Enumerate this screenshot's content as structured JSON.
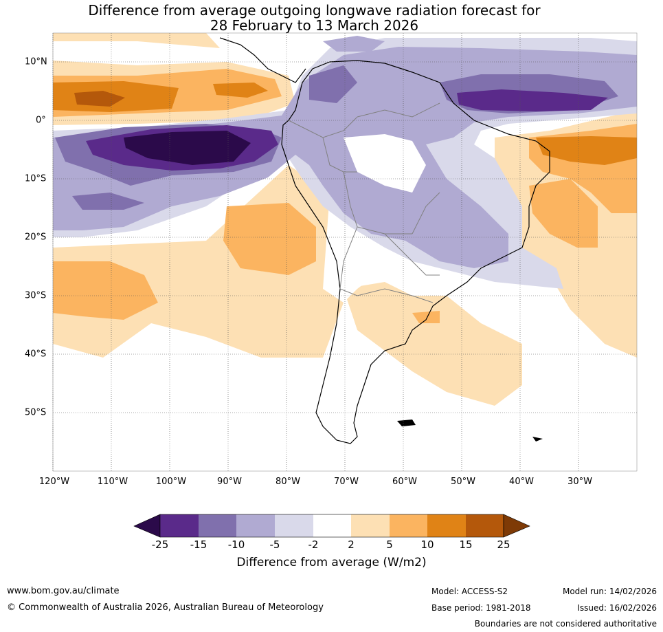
{
  "title": {
    "line1": "Difference from average outgoing longwave radiation forecast for",
    "line2": "28 February to 13 March 2026"
  },
  "map": {
    "lat_labels": [
      "10°N",
      "0°",
      "10°S",
      "20°S",
      "30°S",
      "40°S",
      "50°S"
    ],
    "lon_labels": [
      "120°W",
      "110°W",
      "100°W",
      "90°W",
      "80°W",
      "70°W",
      "60°W",
      "50°W",
      "40°W",
      "30°W"
    ]
  },
  "colorbar": {
    "title": "Difference from average (W/m2)",
    "tick_labels": [
      "-25",
      "-15",
      "-10",
      "-5",
      "-2",
      "2",
      "5",
      "10",
      "15",
      "25"
    ],
    "colors": {
      "below_-25": "#2b0a4a",
      "-25_-15": "#5a2a8a",
      "-15_-10": "#8070ad",
      "-10_-5": "#b0aad2",
      "-5_-2": "#d9d9ea",
      "-2_2": "#ffffff",
      "2_5": "#fde0b4",
      "5_10": "#fbb460",
      "10_15": "#e08316",
      "15_25": "#b4580b",
      "above_25": "#7e3a06"
    }
  },
  "footer": {
    "website": "www.bom.gov.au/climate",
    "copyright": "© Commonwealth of Australia 2026, Australian Bureau of Meteorology",
    "model": "Model: ACCESS-S2",
    "base_period": "Base period: 1981-2018",
    "model_run": "Model run: 14/02/2026",
    "issued": "Issued: 16/02/2026",
    "disclaimer": "Boundaries are not considered authoritative"
  }
}
